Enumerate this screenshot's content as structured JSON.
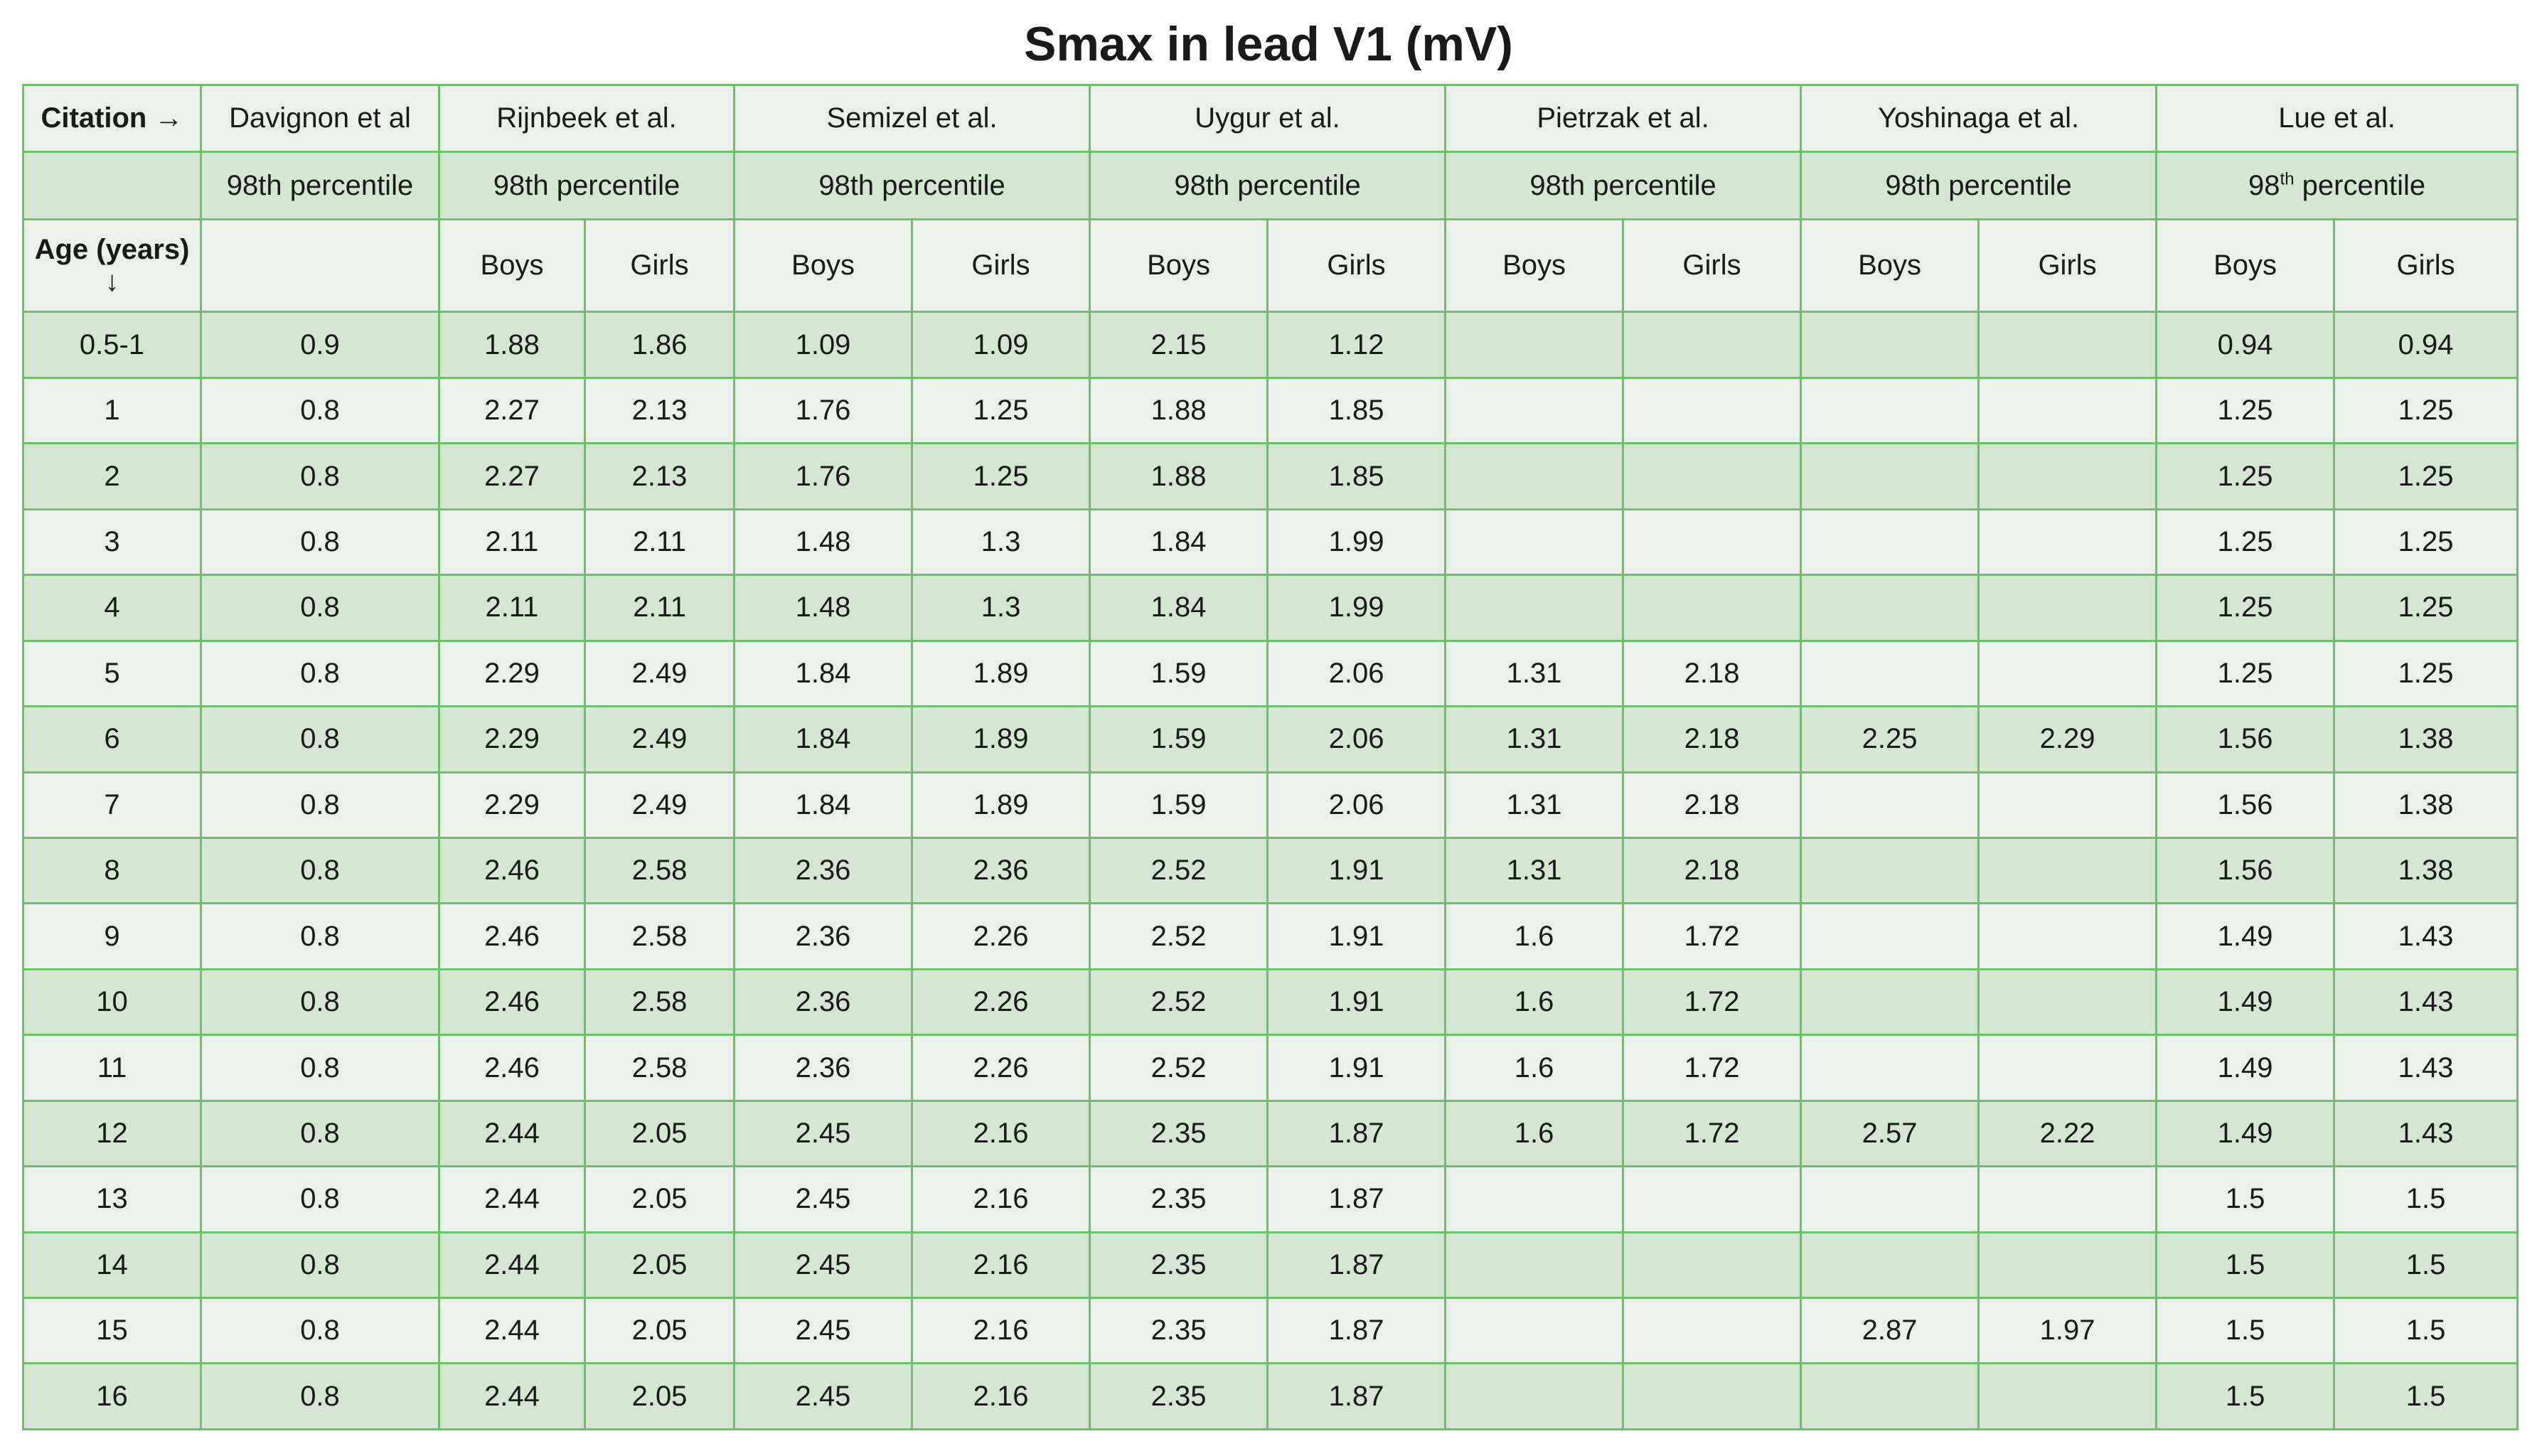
{
  "title": "Smax in lead V1 (mV)",
  "colors": {
    "border": "#6cc06c",
    "band_dark": "#d5e6d3",
    "band_light": "#ebf1ea"
  },
  "header": {
    "corner_label": "Citation →",
    "age_label": "Age (years)",
    "age_arrow": "↓",
    "citations": [
      "Davignon et al",
      "Rijnbeek et al.",
      "Semizel  et al.",
      "Uygur  et al.",
      "Pietrzak  et al.",
      "Yoshinaga et al.",
      "Lue et al."
    ],
    "percentile_label": "98th percentile",
    "lue_percentile_base": "98",
    "lue_percentile_sup": "th",
    "lue_percentile_tail": " percentile",
    "boys": "Boys",
    "girls": "Girls"
  },
  "rows": [
    {
      "age": "0.5-1",
      "davignon": "0.9",
      "vals": [
        "1.88",
        "1.86",
        "1.09",
        "1.09",
        "2.15",
        "1.12",
        "",
        "",
        "",
        "",
        "0.94",
        "0.94"
      ]
    },
    {
      "age": "1",
      "davignon": "0.8",
      "vals": [
        "2.27",
        "2.13",
        "1.76",
        "1.25",
        "1.88",
        "1.85",
        "",
        "",
        "",
        "",
        "1.25",
        "1.25"
      ]
    },
    {
      "age": "2",
      "davignon": "0.8",
      "vals": [
        "2.27",
        "2.13",
        "1.76",
        "1.25",
        "1.88",
        "1.85",
        "",
        "",
        "",
        "",
        "1.25",
        "1.25"
      ]
    },
    {
      "age": "3",
      "davignon": "0.8",
      "vals": [
        "2.11",
        "2.11",
        "1.48",
        "1.3",
        "1.84",
        "1.99",
        "",
        "",
        "",
        "",
        "1.25",
        "1.25"
      ]
    },
    {
      "age": "4",
      "davignon": "0.8",
      "vals": [
        "2.11",
        "2.11",
        "1.48",
        "1.3",
        "1.84",
        "1.99",
        "",
        "",
        "",
        "",
        "1.25",
        "1.25"
      ]
    },
    {
      "age": "5",
      "davignon": "0.8",
      "vals": [
        "2.29",
        "2.49",
        "1.84",
        "1.89",
        "1.59",
        "2.06",
        "1.31",
        "2.18",
        "",
        "",
        "1.25",
        "1.25"
      ]
    },
    {
      "age": "6",
      "davignon": "0.8",
      "vals": [
        "2.29",
        "2.49",
        "1.84",
        "1.89",
        "1.59",
        "2.06",
        "1.31",
        "2.18",
        "2.25",
        "2.29",
        "1.56",
        "1.38"
      ]
    },
    {
      "age": "7",
      "davignon": "0.8",
      "vals": [
        "2.29",
        "2.49",
        "1.84",
        "1.89",
        "1.59",
        "2.06",
        "1.31",
        "2.18",
        "",
        "",
        "1.56",
        "1.38"
      ]
    },
    {
      "age": "8",
      "davignon": "0.8",
      "vals": [
        "2.46",
        "2.58",
        "2.36",
        "2.36",
        "2.52",
        "1.91",
        "1.31",
        "2.18",
        "",
        "",
        "1.56",
        "1.38"
      ]
    },
    {
      "age": "9",
      "davignon": "0.8",
      "vals": [
        "2.46",
        "2.58",
        "2.36",
        "2.26",
        "2.52",
        "1.91",
        "1.6",
        "1.72",
        "",
        "",
        "1.49",
        "1.43"
      ]
    },
    {
      "age": "10",
      "davignon": "0.8",
      "vals": [
        "2.46",
        "2.58",
        "2.36",
        "2.26",
        "2.52",
        "1.91",
        "1.6",
        "1.72",
        "",
        "",
        "1.49",
        "1.43"
      ]
    },
    {
      "age": "11",
      "davignon": "0.8",
      "vals": [
        "2.46",
        "2.58",
        "2.36",
        "2.26",
        "2.52",
        "1.91",
        "1.6",
        "1.72",
        "",
        "",
        "1.49",
        "1.43"
      ]
    },
    {
      "age": "12",
      "davignon": "0.8",
      "vals": [
        "2.44",
        "2.05",
        "2.45",
        "2.16",
        "2.35",
        "1.87",
        "1.6",
        "1.72",
        "2.57",
        "2.22",
        "1.49",
        "1.43"
      ]
    },
    {
      "age": "13",
      "davignon": "0.8",
      "vals": [
        "2.44",
        "2.05",
        "2.45",
        "2.16",
        "2.35",
        "1.87",
        "",
        "",
        "",
        "",
        "1.5",
        "1.5"
      ]
    },
    {
      "age": "14",
      "davignon": "0.8",
      "vals": [
        "2.44",
        "2.05",
        "2.45",
        "2.16",
        "2.35",
        "1.87",
        "",
        "",
        "",
        "",
        "1.5",
        "1.5"
      ]
    },
    {
      "age": "15",
      "davignon": "0.8",
      "vals": [
        "2.44",
        "2.05",
        "2.45",
        "2.16",
        "2.35",
        "1.87",
        "",
        "",
        "2.87",
        "1.97",
        "1.5",
        "1.5"
      ]
    },
    {
      "age": "16",
      "davignon": "0.8",
      "vals": [
        "2.44",
        "2.05",
        "2.45",
        "2.16",
        "2.35",
        "1.87",
        "",
        "",
        "",
        "",
        "1.5",
        "1.5"
      ]
    }
  ]
}
